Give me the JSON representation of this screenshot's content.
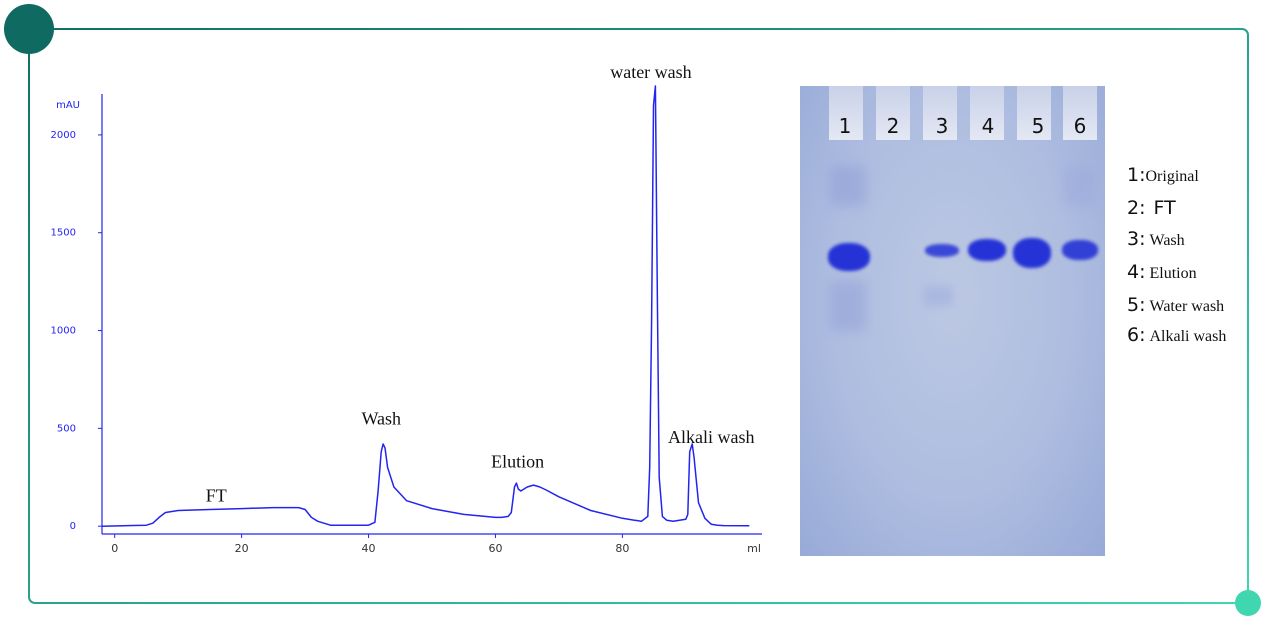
{
  "colors": {
    "frame": "#1a7a70",
    "frame_dot_dark": "#0f6b62",
    "frame_dot_light": "#3fd6b0",
    "trace": "#2424f0",
    "band": "#2533d6"
  },
  "chart_data": {
    "type": "line",
    "xlabel": "ml",
    "ylabel": "mAU",
    "xlim": [
      -2,
      102
    ],
    "ylim": [
      -40,
      2250
    ],
    "xticks": [
      0,
      20,
      40,
      60,
      80
    ],
    "yticks": [
      0,
      500,
      1000,
      1500,
      2000
    ],
    "series": [
      {
        "x": [
          -2,
          5,
          6,
          7,
          8,
          10,
          15,
          20,
          25,
          29,
          30,
          31,
          32,
          34,
          40,
          41,
          41.5,
          42,
          42.3,
          42.6,
          43,
          44,
          46,
          50,
          55,
          60,
          61,
          62,
          62.5,
          63,
          63.3,
          63.6,
          64,
          65,
          66,
          67,
          68,
          70,
          75,
          80,
          83,
          84,
          84.3,
          84.6,
          84.9,
          85.2,
          85.5,
          85.8,
          86.3,
          87,
          88,
          89,
          90,
          90.3,
          90.6,
          91,
          91.3,
          91.6,
          92,
          93,
          94,
          95,
          96,
          100
        ],
        "y": [
          0,
          5,
          15,
          45,
          70,
          80,
          85,
          90,
          95,
          95,
          85,
          45,
          25,
          5,
          5,
          20,
          180,
          380,
          420,
          400,
          300,
          200,
          130,
          90,
          60,
          45,
          45,
          50,
          70,
          200,
          220,
          190,
          180,
          200,
          210,
          200,
          185,
          150,
          80,
          40,
          25,
          50,
          300,
          1050,
          2150,
          2250,
          1200,
          250,
          50,
          30,
          25,
          30,
          35,
          60,
          380,
          420,
          350,
          250,
          120,
          40,
          10,
          5,
          3,
          2
        ]
      }
    ],
    "annotations": [
      {
        "text": "FT",
        "x": 16,
        "y": 125
      },
      {
        "text": "Wash",
        "x": 42,
        "y": 520
      },
      {
        "text": "Elution",
        "x": 63.5,
        "y": 300
      },
      {
        "text": "water wash",
        "x": 84.5,
        "y": 2290
      },
      {
        "text": "Alkali wash",
        "x": 94,
        "y": 425
      }
    ]
  },
  "gel": {
    "lanes": [
      "1",
      "2",
      "3",
      "4",
      "5",
      "6"
    ],
    "legend": [
      {
        "num": "1:",
        "label": "Original"
      },
      {
        "num": "2:",
        "label": "FT"
      },
      {
        "num": "3:",
        "label": "Wash"
      },
      {
        "num": "4:",
        "label": "Elution"
      },
      {
        "num": "5:",
        "label": "Water wash"
      },
      {
        "num": "6:",
        "label": "Alkali wash"
      }
    ]
  }
}
